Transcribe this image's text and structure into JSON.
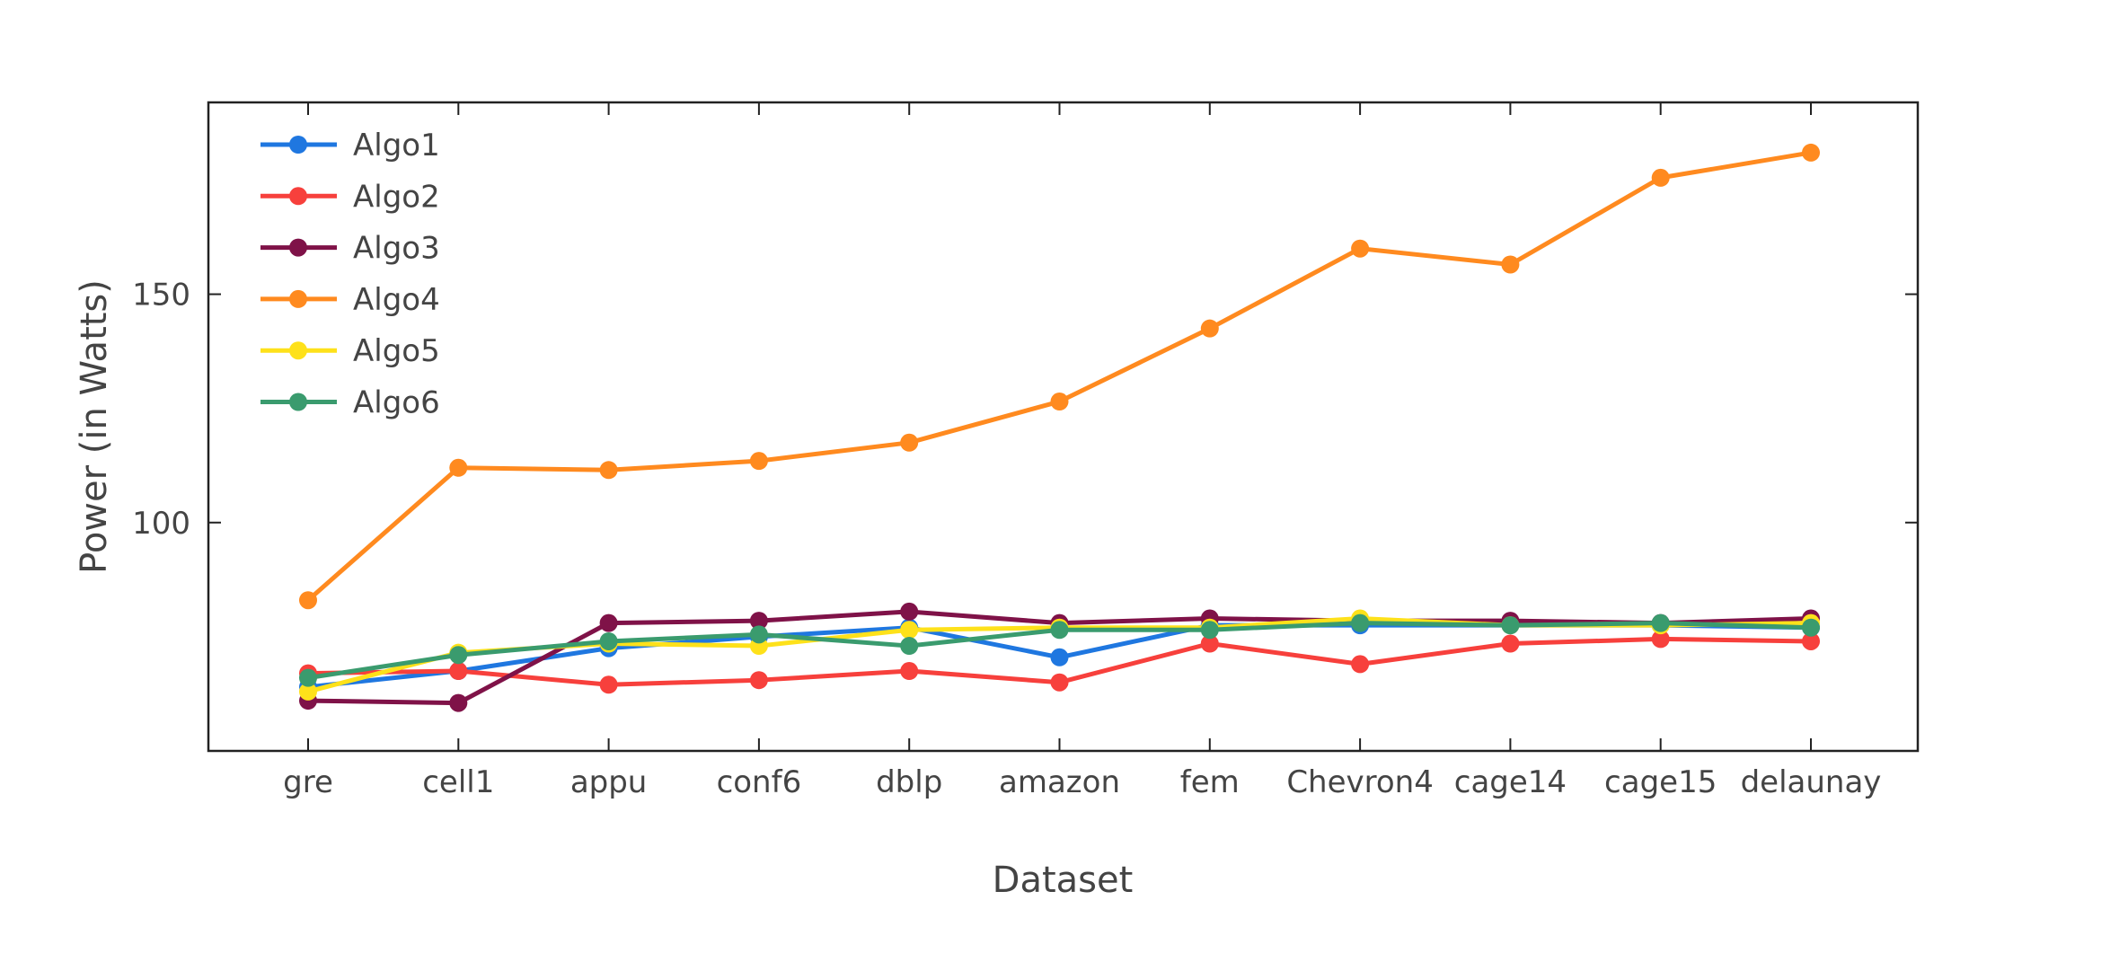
{
  "chart_data": {
    "type": "line",
    "title": "",
    "xlabel": "Dataset",
    "ylabel": "Power (in Watts)",
    "categories": [
      "gre",
      "cell1",
      "appu",
      "conf6",
      "dblp",
      "amazon",
      "fem",
      "Chevron4",
      "cage14",
      "cage15",
      "delaunay"
    ],
    "yticks": [
      100,
      150
    ],
    "ylim": [
      50,
      192
    ],
    "grid": false,
    "legend": "top-left",
    "series": [
      {
        "name": "Algo1",
        "color": "#1f77e0",
        "values": [
          64,
          67.5,
          72.5,
          75,
          77,
          70.5,
          77.5,
          77.5,
          77.5,
          77.5,
          77
        ]
      },
      {
        "name": "Algo2",
        "color": "#f7403c",
        "values": [
          67,
          67.5,
          64.5,
          65.5,
          67.5,
          65,
          73.5,
          69,
          73.5,
          74.5,
          74
        ]
      },
      {
        "name": "Algo3",
        "color": "#7f1248",
        "values": [
          61,
          60.5,
          78,
          78.5,
          80.5,
          78,
          79,
          78.5,
          78.5,
          78,
          79
        ]
      },
      {
        "name": "Algo4",
        "color": "#ff8a1f",
        "values": [
          83,
          112,
          111.5,
          113.5,
          117.5,
          126.5,
          142.5,
          160,
          156.5,
          175.5,
          181
        ]
      },
      {
        "name": "Algo5",
        "color": "#fee11a",
        "values": [
          63,
          71.5,
          73.5,
          73,
          76.5,
          77,
          77,
          79,
          77.5,
          77.5,
          78
        ]
      },
      {
        "name": "Algo6",
        "color": "#3a9b6e",
        "values": [
          66,
          71,
          74,
          75.5,
          73,
          76.5,
          76.5,
          78,
          77.5,
          78,
          77
        ]
      }
    ]
  }
}
